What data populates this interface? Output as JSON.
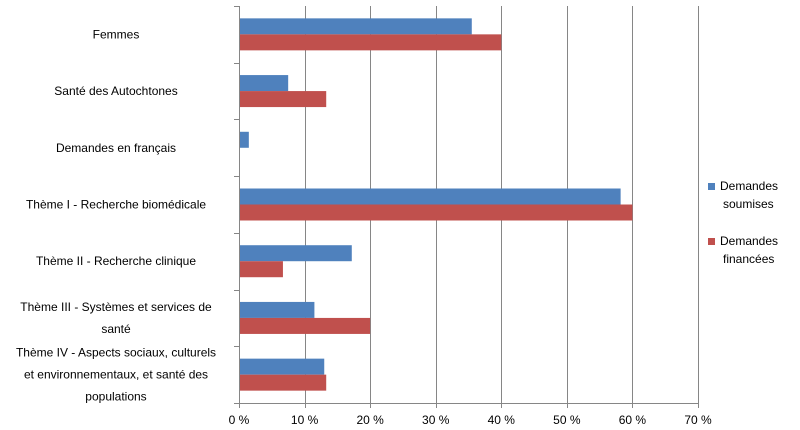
{
  "chart_data": {
    "type": "bar",
    "orientation": "horizontal",
    "categories": [
      "Femmes",
      "Santé des Autochtones",
      "Demandes en français",
      "Thème I - Recherche biomédicale",
      "Thème II - Recherche clinique",
      "Thème III - Systèmes et services de santé",
      "Thème IV - Aspects sociaux, culturels et environnementaux, et santé des populations"
    ],
    "category_lines": [
      [
        "Femmes"
      ],
      [
        "Santé des Autochtones"
      ],
      [
        "Demandes en français"
      ],
      [
        "Thème I - Recherche biomédicale"
      ],
      [
        "Thème II - Recherche clinique"
      ],
      [
        "Thème III - Systèmes et services de",
        "santé"
      ],
      [
        "Thème IV - Aspects sociaux, culturels",
        "et environnementaux, et santé des",
        "populations"
      ]
    ],
    "series": [
      {
        "name": "Demandes soumises",
        "name_lines": [
          "Demandes",
          "soumises"
        ],
        "color": "#4F81BD",
        "values": [
          35.5,
          7.5,
          1.5,
          58.2,
          17.2,
          11.5,
          13.0
        ]
      },
      {
        "name": "Demandes financées",
        "name_lines": [
          "Demandes",
          "financées"
        ],
        "color": "#C0504D",
        "values": [
          40.0,
          13.3,
          0.0,
          60.0,
          6.7,
          20.0,
          13.3
        ]
      }
    ],
    "xlim": [
      0,
      70
    ],
    "xticks": [
      0,
      10,
      20,
      30,
      40,
      50,
      60,
      70
    ],
    "xtick_labels": [
      "0 %",
      "10 %",
      "20 %",
      "30 %",
      "40 %",
      "50 %",
      "60 %",
      "70 %"
    ],
    "grid": true,
    "legend_position": "right",
    "title": "",
    "xlabel": "",
    "ylabel": ""
  }
}
